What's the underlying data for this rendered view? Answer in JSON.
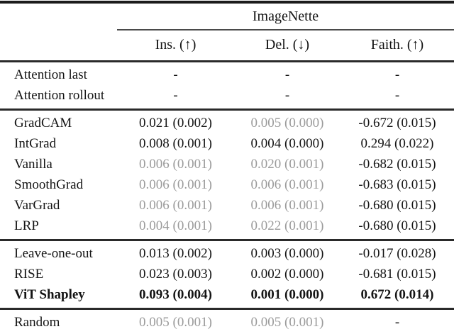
{
  "table": {
    "group_header": "ImageNette",
    "columns": [
      {
        "label": "Ins. (↑)"
      },
      {
        "label": "Del. (↓)"
      },
      {
        "label": "Faith. (↑)"
      }
    ],
    "sections": [
      {
        "rows": [
          {
            "method": "Attention last",
            "bold": false,
            "cells": [
              {
                "text": "-",
                "gray": false
              },
              {
                "text": "-",
                "gray": false
              },
              {
                "text": "-",
                "gray": false
              }
            ]
          },
          {
            "method": "Attention rollout",
            "bold": false,
            "cells": [
              {
                "text": "-",
                "gray": false
              },
              {
                "text": "-",
                "gray": false
              },
              {
                "text": "-",
                "gray": false
              }
            ]
          }
        ]
      },
      {
        "rows": [
          {
            "method": "GradCAM",
            "bold": false,
            "cells": [
              {
                "text": "0.021 (0.002)",
                "gray": false
              },
              {
                "text": "0.005 (0.000)",
                "gray": true
              },
              {
                "text": "-0.672 (0.015)",
                "gray": false
              }
            ]
          },
          {
            "method": "IntGrad",
            "bold": false,
            "cells": [
              {
                "text": "0.008 (0.001)",
                "gray": false
              },
              {
                "text": "0.004 (0.000)",
                "gray": false
              },
              {
                "text": "0.294 (0.022)",
                "gray": false
              }
            ]
          },
          {
            "method": "Vanilla",
            "bold": false,
            "cells": [
              {
                "text": "0.006 (0.001)",
                "gray": true
              },
              {
                "text": "0.020 (0.001)",
                "gray": true
              },
              {
                "text": "-0.682 (0.015)",
                "gray": false
              }
            ]
          },
          {
            "method": "SmoothGrad",
            "bold": false,
            "cells": [
              {
                "text": "0.006 (0.001)",
                "gray": true
              },
              {
                "text": "0.006 (0.001)",
                "gray": true
              },
              {
                "text": "-0.683 (0.015)",
                "gray": false
              }
            ]
          },
          {
            "method": "VarGrad",
            "bold": false,
            "cells": [
              {
                "text": "0.006 (0.001)",
                "gray": true
              },
              {
                "text": "0.006 (0.001)",
                "gray": true
              },
              {
                "text": "-0.680 (0.015)",
                "gray": false
              }
            ]
          },
          {
            "method": "LRP",
            "bold": false,
            "cells": [
              {
                "text": "0.004 (0.001)",
                "gray": true
              },
              {
                "text": "0.022 (0.001)",
                "gray": true
              },
              {
                "text": "-0.680 (0.015)",
                "gray": false
              }
            ]
          }
        ]
      },
      {
        "rows": [
          {
            "method": "Leave-one-out",
            "bold": false,
            "cells": [
              {
                "text": "0.013 (0.002)",
                "gray": false
              },
              {
                "text": "0.003 (0.000)",
                "gray": false
              },
              {
                "text": "-0.017 (0.028)",
                "gray": false
              }
            ]
          },
          {
            "method": "RISE",
            "bold": false,
            "cells": [
              {
                "text": "0.023 (0.003)",
                "gray": false
              },
              {
                "text": "0.002 (0.000)",
                "gray": false
              },
              {
                "text": "-0.681 (0.015)",
                "gray": false
              }
            ]
          },
          {
            "method": "ViT Shapley",
            "bold": true,
            "cells": [
              {
                "text": "0.093 (0.004)",
                "gray": false
              },
              {
                "text": "0.001 (0.000)",
                "gray": false
              },
              {
                "text": "0.672 (0.014)",
                "gray": false
              }
            ]
          }
        ]
      },
      {
        "rows": [
          {
            "method": "Random",
            "bold": false,
            "cells": [
              {
                "text": "0.005 (0.001)",
                "gray": true
              },
              {
                "text": "0.005 (0.001)",
                "gray": true
              },
              {
                "text": "-",
                "gray": false
              }
            ]
          }
        ]
      }
    ]
  },
  "colors": {
    "text": "#141414",
    "muted": "#9b9b9b",
    "rule": "#1c1c1c"
  }
}
